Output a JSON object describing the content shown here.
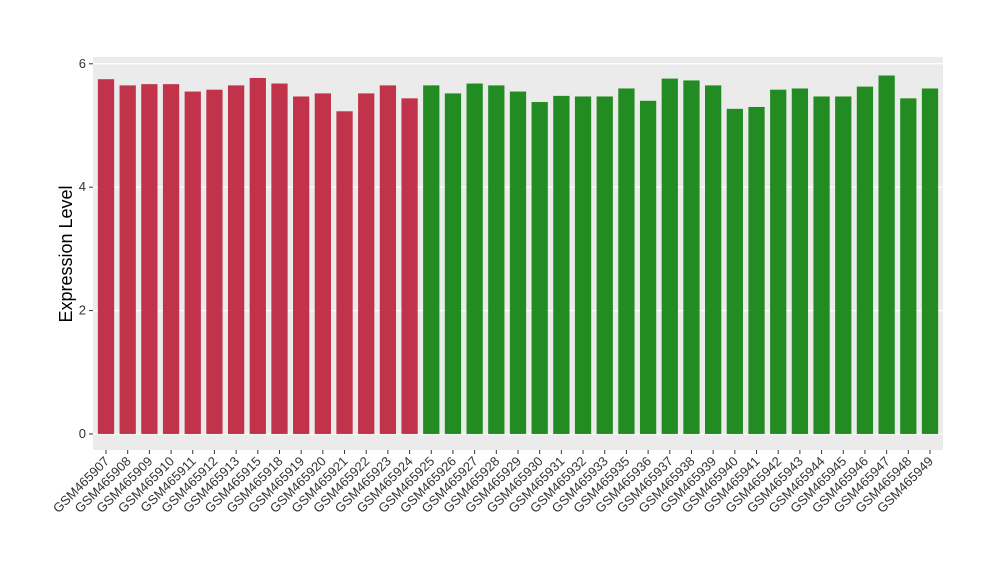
{
  "chart_data": {
    "type": "bar",
    "y_label": "Expression Level",
    "categories": [
      "GSM465907",
      "GSM465908",
      "GSM465909",
      "GSM465910",
      "GSM465911",
      "GSM465912",
      "GSM465913",
      "GSM465915",
      "GSM465918",
      "GSM465919",
      "GSM465920",
      "GSM465921",
      "GSM465922",
      "GSM465923",
      "GSM465924",
      "GSM465925",
      "GSM465926",
      "GSM465927",
      "GSM465928",
      "GSM465929",
      "GSM465930",
      "GSM465931",
      "GSM465932",
      "GSM465933",
      "GSM465935",
      "GSM465936",
      "GSM465937",
      "GSM465938",
      "GSM465939",
      "GSM465940",
      "GSM465941",
      "GSM465942",
      "GSM465943",
      "GSM465944",
      "GSM465945",
      "GSM465946",
      "GSM465947",
      "GSM465948",
      "GSM465949"
    ],
    "values": [
      5.75,
      5.65,
      5.67,
      5.67,
      5.55,
      5.58,
      5.65,
      5.77,
      5.68,
      5.47,
      5.52,
      5.23,
      5.52,
      5.65,
      5.44,
      5.65,
      5.52,
      5.68,
      5.65,
      5.55,
      5.38,
      5.48,
      5.47,
      5.47,
      5.6,
      5.4,
      5.76,
      5.73,
      5.65,
      5.27,
      5.3,
      5.58,
      5.6,
      5.47,
      5.47,
      5.63,
      5.81,
      5.44,
      5.6
    ],
    "colors": [
      "#c0334a",
      "#c0334a",
      "#c0334a",
      "#c0334a",
      "#c0334a",
      "#c0334a",
      "#c0334a",
      "#c0334a",
      "#c0334a",
      "#c0334a",
      "#c0334a",
      "#c0334a",
      "#c0334a",
      "#c0334a",
      "#c0334a",
      "#228b22",
      "#228b22",
      "#228b22",
      "#228b22",
      "#228b22",
      "#228b22",
      "#228b22",
      "#228b22",
      "#228b22",
      "#228b22",
      "#228b22",
      "#228b22",
      "#228b22",
      "#228b22",
      "#228b22",
      "#228b22",
      "#228b22",
      "#228b22",
      "#228b22",
      "#228b22",
      "#228b22",
      "#228b22",
      "#228b22",
      "#228b22"
    ],
    "ylim": [
      -0.26,
      6.11
    ],
    "yticks": [
      0,
      2,
      4,
      6
    ],
    "grid": true
  }
}
